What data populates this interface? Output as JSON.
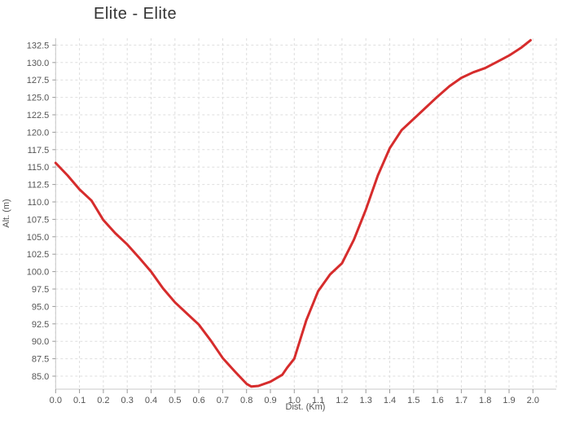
{
  "title": "Elite - Elite",
  "colors": {
    "line": "#d62c2c",
    "grid": "#dedede",
    "axis": "#c8c8c8",
    "tick": "#999999",
    "text": "#545454",
    "title_text": "#333333",
    "background": "#ffffff"
  },
  "chart_data": {
    "type": "line",
    "title": "Elite - Elite",
    "xlabel": "Dist. (Km)",
    "ylabel": "Alt. (m)",
    "xlim": [
      0.0,
      2.1
    ],
    "ylim": [
      83.1,
      133.5
    ],
    "grid": true,
    "grid_style": "dashed",
    "legend_position": "none",
    "x_ticks": [
      "0.0",
      "0.1",
      "0.2",
      "0.3",
      "0.4",
      "0.5",
      "0.6",
      "0.7",
      "0.8",
      "0.9",
      "1.0",
      "1.1",
      "1.2",
      "1.3",
      "1.4",
      "1.5",
      "1.6",
      "1.7",
      "1.8",
      "1.9",
      "2.0"
    ],
    "y_ticks": [
      "85.0",
      "87.5",
      "90.0",
      "92.5",
      "95.0",
      "97.5",
      "100.0",
      "102.5",
      "105.0",
      "107.5",
      "110.0",
      "112.5",
      "115.0",
      "117.5",
      "120.0",
      "122.5",
      "125.0",
      "127.5",
      "130.0",
      "132.5"
    ],
    "series": [
      {
        "name": "Elite - Elite",
        "color": "#d62c2c",
        "points": [
          [
            0.0,
            115.6
          ],
          [
            0.05,
            113.8
          ],
          [
            0.1,
            111.8
          ],
          [
            0.15,
            110.2
          ],
          [
            0.2,
            107.4
          ],
          [
            0.25,
            105.5
          ],
          [
            0.3,
            103.9
          ],
          [
            0.35,
            102.0
          ],
          [
            0.4,
            100.0
          ],
          [
            0.45,
            97.6
          ],
          [
            0.5,
            95.6
          ],
          [
            0.55,
            94.0
          ],
          [
            0.6,
            92.4
          ],
          [
            0.65,
            90.1
          ],
          [
            0.7,
            87.6
          ],
          [
            0.75,
            85.7
          ],
          [
            0.8,
            83.9
          ],
          [
            0.82,
            83.5
          ],
          [
            0.85,
            83.6
          ],
          [
            0.9,
            84.2
          ],
          [
            0.95,
            85.2
          ],
          [
            0.97,
            86.2
          ],
          [
            1.0,
            87.5
          ],
          [
            1.05,
            93.0
          ],
          [
            1.1,
            97.2
          ],
          [
            1.15,
            99.6
          ],
          [
            1.2,
            101.2
          ],
          [
            1.25,
            104.6
          ],
          [
            1.3,
            108.9
          ],
          [
            1.35,
            113.8
          ],
          [
            1.4,
            117.7
          ],
          [
            1.45,
            120.3
          ],
          [
            1.5,
            121.9
          ],
          [
            1.55,
            123.5
          ],
          [
            1.6,
            125.1
          ],
          [
            1.65,
            126.6
          ],
          [
            1.7,
            127.8
          ],
          [
            1.75,
            128.6
          ],
          [
            1.8,
            129.2
          ],
          [
            1.85,
            130.1
          ],
          [
            1.9,
            131.0
          ],
          [
            1.95,
            132.1
          ],
          [
            1.99,
            133.2
          ]
        ]
      }
    ]
  }
}
